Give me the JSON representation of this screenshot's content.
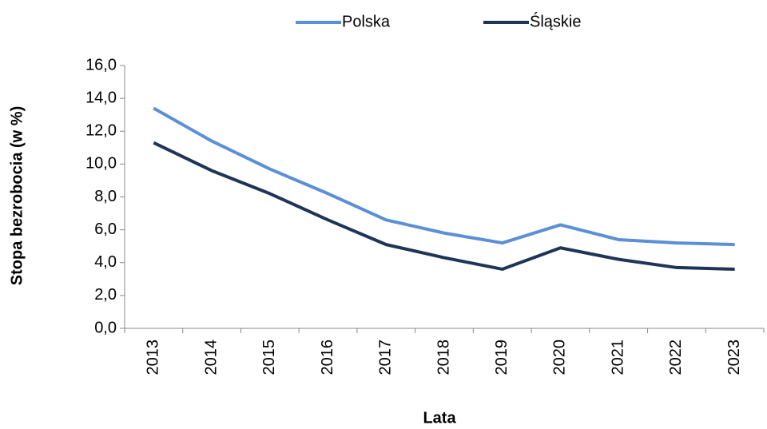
{
  "chart_data": {
    "type": "line",
    "x_label": "Lata",
    "y_label": "Stopa bezrobocia (w %)",
    "categories": [
      "2013",
      "2014",
      "2015",
      "2016",
      "2017",
      "2018",
      "2019",
      "2020",
      "2021",
      "2022",
      "2023"
    ],
    "series": [
      {
        "name": "Polska",
        "color": "#5b8fd6",
        "values": [
          13.4,
          11.4,
          9.7,
          8.2,
          6.6,
          5.8,
          5.2,
          6.3,
          5.4,
          5.2,
          5.1
        ]
      },
      {
        "name": "Śląskie",
        "color": "#1f3558",
        "values": [
          11.3,
          9.6,
          8.2,
          6.6,
          5.1,
          4.3,
          3.6,
          4.9,
          4.2,
          3.7,
          3.6
        ]
      }
    ],
    "ylim": [
      0,
      16
    ],
    "yticks": [
      {
        "value": 0,
        "label": "0,0"
      },
      {
        "value": 2,
        "label": "2,0"
      },
      {
        "value": 4,
        "label": "4,0"
      },
      {
        "value": 6,
        "label": "6,0"
      },
      {
        "value": 8,
        "label": "8,0"
      },
      {
        "value": 10,
        "label": "10,0"
      },
      {
        "value": 12,
        "label": "12,0"
      },
      {
        "value": 14,
        "label": "14,0"
      },
      {
        "value": 16,
        "label": "16,0"
      }
    ],
    "legend": "top",
    "grid": false
  }
}
